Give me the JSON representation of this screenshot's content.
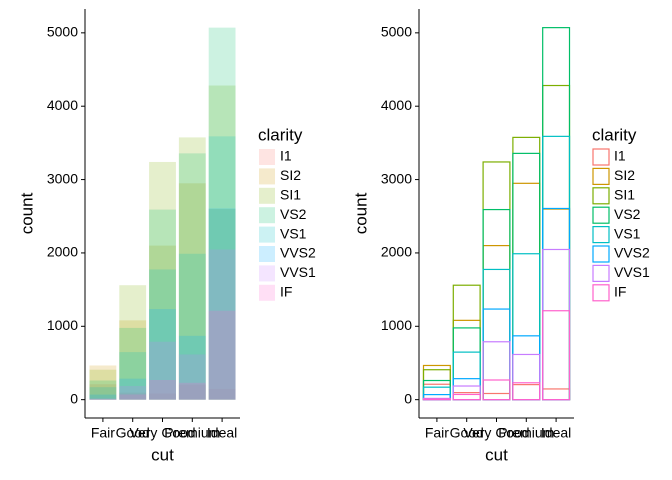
{
  "chart_data": [
    {
      "type": "bar",
      "style": "filled",
      "x_label": "cut",
      "y_label": "count",
      "legend_title": "clarity",
      "categories": [
        "Fair",
        "Good",
        "Very Good",
        "Premium",
        "Ideal"
      ],
      "series": [
        {
          "name": "I1",
          "color": "#F8766D",
          "values": [
            210,
            96,
            84,
            205,
            146
          ]
        },
        {
          "name": "SI2",
          "color": "#CD9600",
          "values": [
            466,
            1081,
            2100,
            2949,
            2598
          ]
        },
        {
          "name": "SI1",
          "color": "#7CAE00",
          "values": [
            408,
            1560,
            3240,
            3575,
            4282
          ]
        },
        {
          "name": "VS2",
          "color": "#00BE67",
          "values": [
            261,
            978,
            2591,
            3357,
            5071
          ]
        },
        {
          "name": "VS1",
          "color": "#00BFC4",
          "values": [
            170,
            648,
            1775,
            1989,
            3589
          ]
        },
        {
          "name": "VVS2",
          "color": "#00A9FF",
          "values": [
            69,
            286,
            1235,
            870,
            2606
          ]
        },
        {
          "name": "VVS1",
          "color": "#C77CFF",
          "values": [
            17,
            186,
            789,
            616,
            2047
          ]
        },
        {
          "name": "IF",
          "color": "#FF61CC",
          "values": [
            9,
            71,
            268,
            230,
            1212
          ]
        }
      ],
      "ylim": [
        -250,
        5325
      ],
      "yticks": [
        0,
        1000,
        2000,
        3000,
        4000,
        5000
      ]
    },
    {
      "type": "bar",
      "style": "outline",
      "x_label": "cut",
      "y_label": "count",
      "legend_title": "clarity",
      "categories": [
        "Fair",
        "Good",
        "Very Good",
        "Premium",
        "Ideal"
      ],
      "series": [
        {
          "name": "I1",
          "color": "#F8766D",
          "values": [
            210,
            96,
            84,
            205,
            146
          ]
        },
        {
          "name": "SI2",
          "color": "#CD9600",
          "values": [
            466,
            1081,
            2100,
            2949,
            2598
          ]
        },
        {
          "name": "SI1",
          "color": "#7CAE00",
          "values": [
            408,
            1560,
            3240,
            3575,
            4282
          ]
        },
        {
          "name": "VS2",
          "color": "#00BE67",
          "values": [
            261,
            978,
            2591,
            3357,
            5071
          ]
        },
        {
          "name": "VS1",
          "color": "#00BFC4",
          "values": [
            170,
            648,
            1775,
            1989,
            3589
          ]
        },
        {
          "name": "VVS2",
          "color": "#00A9FF",
          "values": [
            69,
            286,
            1235,
            870,
            2606
          ]
        },
        {
          "name": "VVS1",
          "color": "#C77CFF",
          "values": [
            17,
            186,
            789,
            616,
            2047
          ]
        },
        {
          "name": "IF",
          "color": "#FF61CC",
          "values": [
            9,
            71,
            268,
            230,
            1212
          ]
        }
      ],
      "ylim": [
        -250,
        5325
      ],
      "yticks": [
        0,
        1000,
        2000,
        3000,
        4000,
        5000
      ]
    }
  ]
}
